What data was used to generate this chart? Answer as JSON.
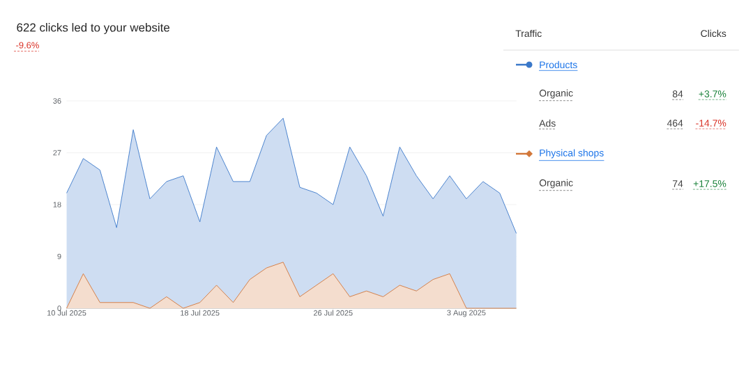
{
  "chart_data": {
    "type": "area",
    "title": "622 clicks led to your website",
    "subtitle": "-9.6%",
    "x": [
      "2025-07-10",
      "2025-07-11",
      "2025-07-12",
      "2025-07-13",
      "2025-07-14",
      "2025-07-15",
      "2025-07-16",
      "2025-07-17",
      "2025-07-18",
      "2025-07-19",
      "2025-07-20",
      "2025-07-21",
      "2025-07-22",
      "2025-07-23",
      "2025-07-24",
      "2025-07-25",
      "2025-07-26",
      "2025-07-27",
      "2025-07-28",
      "2025-07-29",
      "2025-07-30",
      "2025-07-31",
      "2025-08-01",
      "2025-08-02",
      "2025-08-03",
      "2025-08-04",
      "2025-08-05",
      "2025-08-06"
    ],
    "series": [
      {
        "name": "Products",
        "color": "#3a78c9",
        "values": [
          20,
          26,
          24,
          14,
          31,
          19,
          22,
          23,
          15,
          28,
          22,
          22,
          30,
          33,
          21,
          20,
          18,
          28,
          23,
          16,
          28,
          23,
          19,
          23,
          19,
          22,
          20,
          13
        ]
      },
      {
        "name": "Physical shops",
        "color": "#d2773a",
        "values": [
          0,
          6,
          1,
          1,
          1,
          0,
          2,
          0,
          1,
          4,
          1,
          5,
          7,
          8,
          2,
          4,
          6,
          2,
          3,
          2,
          4,
          3,
          5,
          6,
          0,
          0,
          0,
          0
        ]
      }
    ],
    "xlim": [
      "2025-07-10",
      "2025-08-06"
    ],
    "xticks": [
      {
        "value": "2025-07-10",
        "label": "10 Jul 2025"
      },
      {
        "value": "2025-07-18",
        "label": "18 Jul 2025"
      },
      {
        "value": "2025-07-26",
        "label": "26 Jul 2025"
      },
      {
        "value": "2025-08-03",
        "label": "3 Aug 2025"
      }
    ],
    "ylim": [
      0,
      36
    ],
    "yticks": [
      0,
      9,
      18,
      27,
      36
    ],
    "grid": "y",
    "legend": "right",
    "annotations": [
      "Traffic",
      "Clicks",
      "Organic",
      "84",
      "+3.7%",
      "Ads",
      "464",
      "-14.7%",
      "Organic",
      "74",
      "+17.5%"
    ]
  }
}
